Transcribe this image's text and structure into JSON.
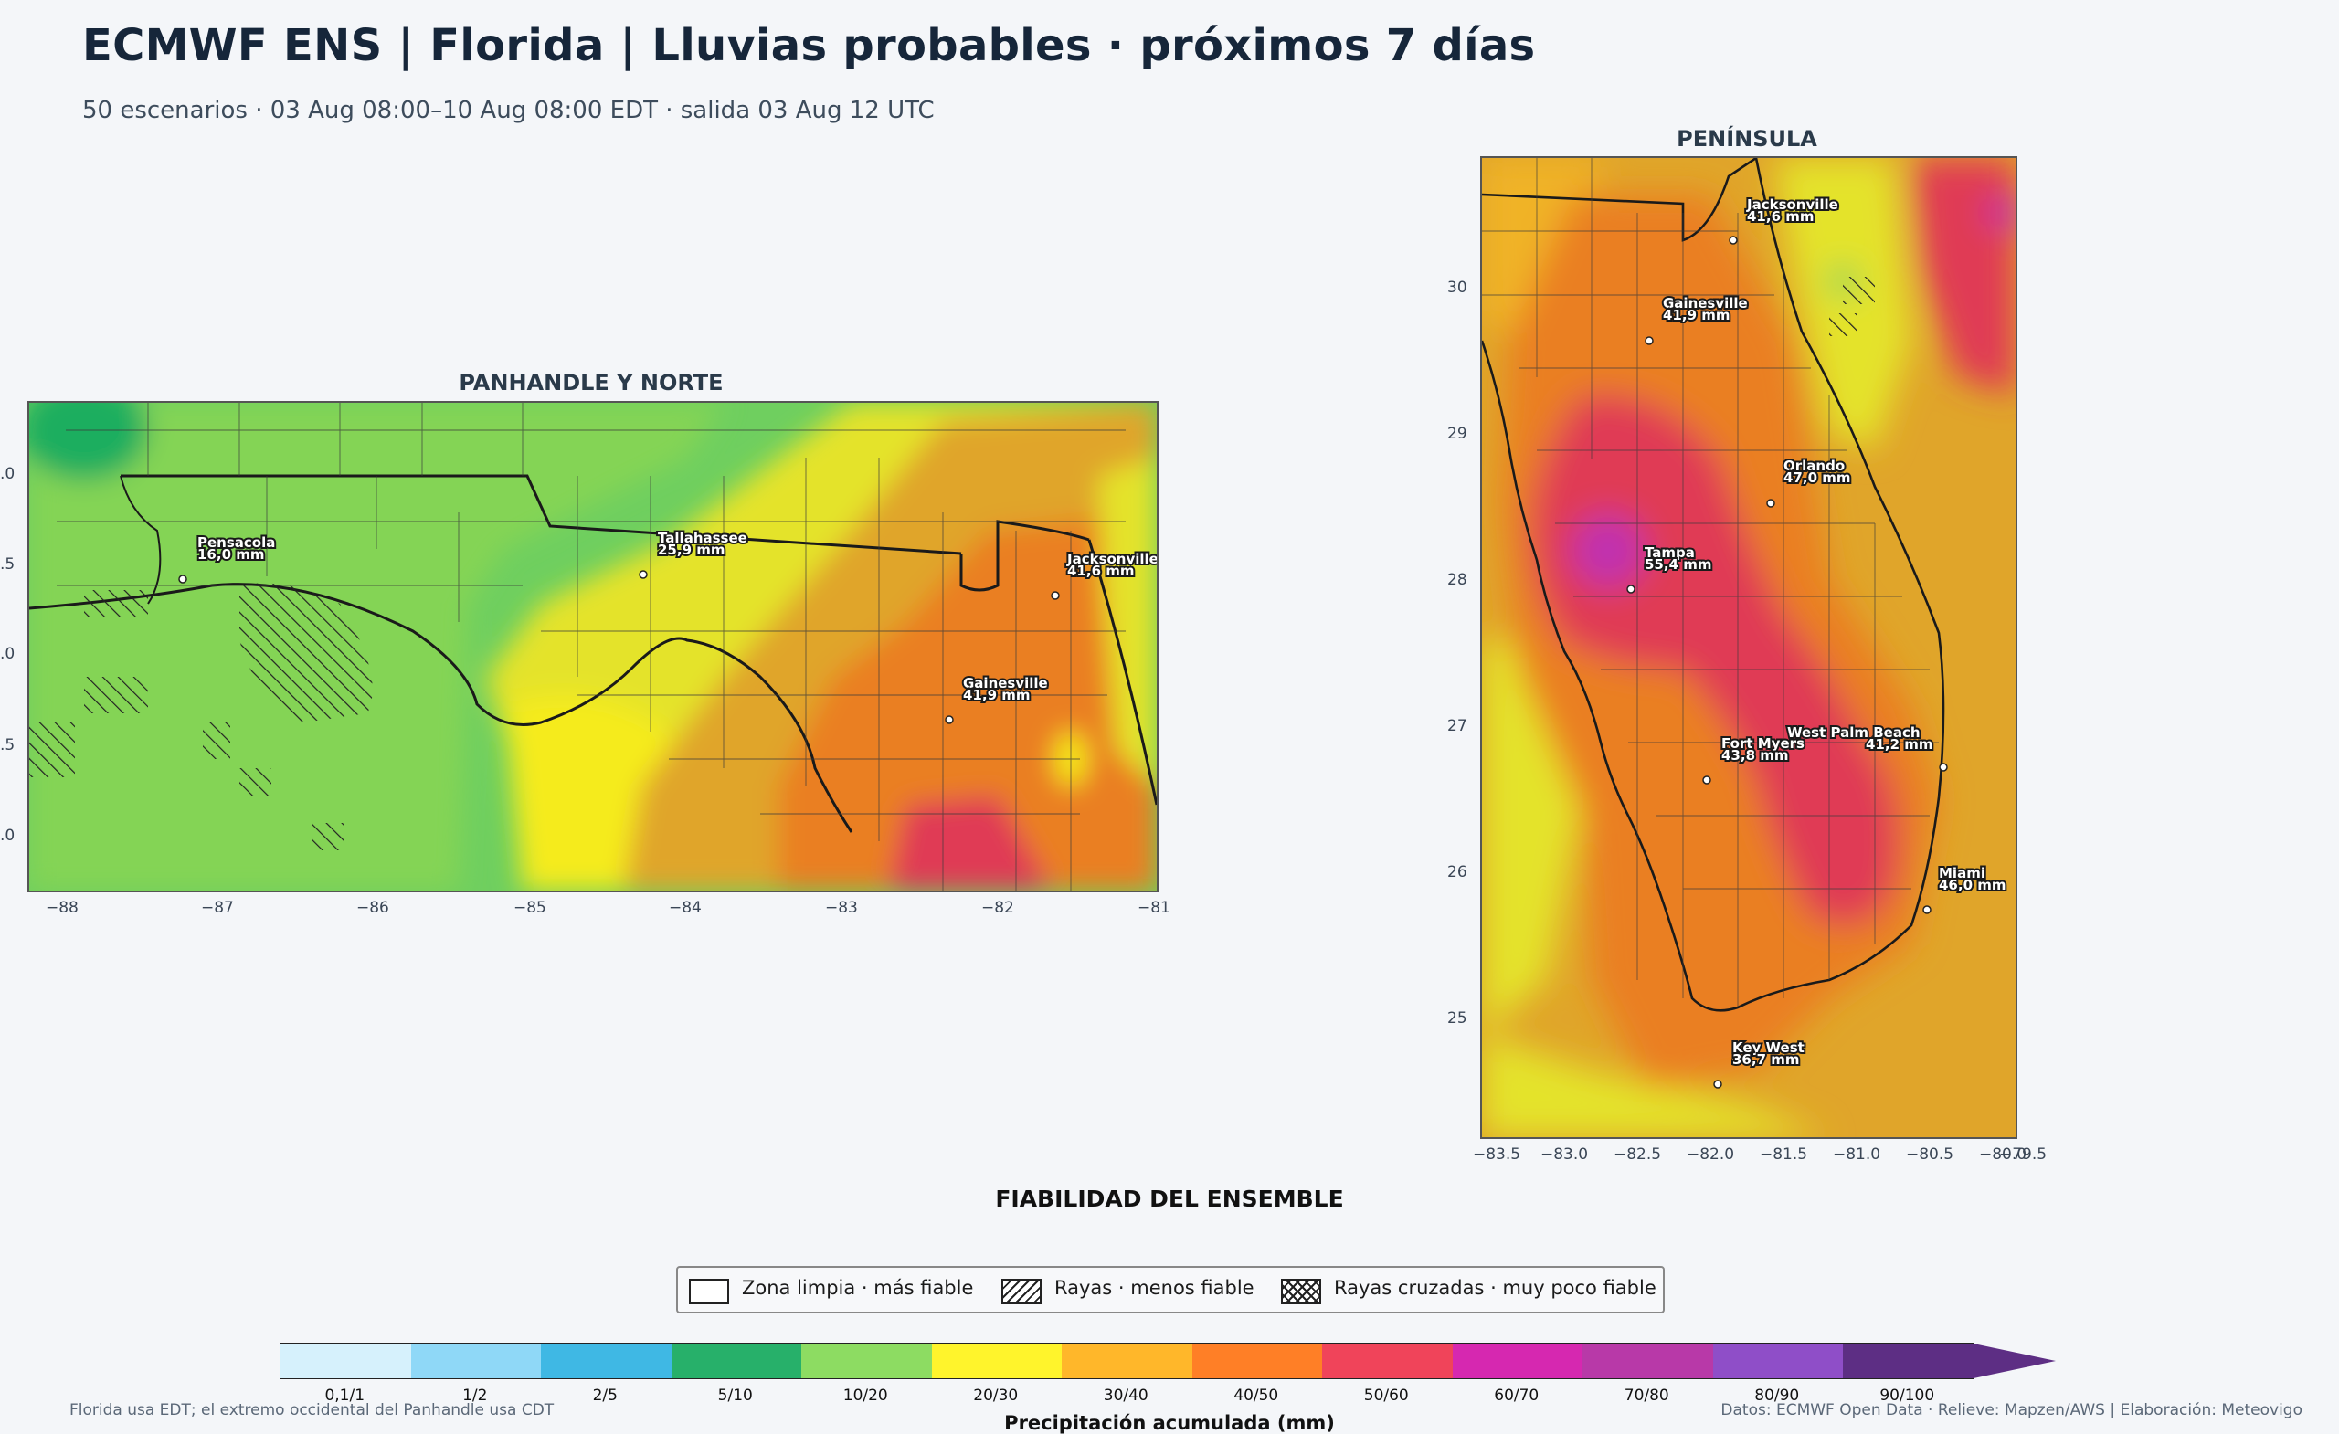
{
  "header": {
    "title": "ECMWF ENS | Florida | Lluvias probables · próximos 7 días",
    "subtitle": "50 escenarios · 03 Aug 08:00–10 Aug 08:00 EDT · salida 03 Aug 12 UTC"
  },
  "panhandle": {
    "title": "PANHANDLE Y NORTE",
    "xticks": [
      "−88",
      "−87",
      "−86",
      "−85",
      "−84",
      "−83",
      "−82",
      "−81"
    ],
    "yticks": [
      ".0",
      ".5",
      ".0",
      ".5",
      ".0"
    ],
    "cities": [
      {
        "name": "Pensacola",
        "value": "16,0 mm"
      },
      {
        "name": "Tallahassee",
        "value": "25,9 mm"
      },
      {
        "name": "Jacksonville",
        "value": "41,6 mm"
      },
      {
        "name": "Gainesville",
        "value": "41,9 mm"
      }
    ]
  },
  "peninsula": {
    "title": "PENÍNSULA",
    "xticks": [
      "−83.5",
      "−83.0",
      "−82.5",
      "−82.0",
      "−81.5",
      "−81.0",
      "−80.5",
      "−80.0",
      "−79.5"
    ],
    "yticks": [
      "30",
      "29",
      "28",
      "27",
      "26",
      "25"
    ],
    "cities": [
      {
        "name": "Jacksonville",
        "value": "41,6 mm"
      },
      {
        "name": "Gainesville",
        "value": "41,9 mm"
      },
      {
        "name": "Orlando",
        "value": "47,0 mm"
      },
      {
        "name": "Tampa",
        "value": "55,4 mm"
      },
      {
        "name": "Fort Myers",
        "value": "43,8 mm"
      },
      {
        "name": "West Palm Beach",
        "value": "41,2 mm"
      },
      {
        "name": "Miami",
        "value": "46,0 mm"
      },
      {
        "name": "Key West",
        "value": "36,7 mm"
      }
    ]
  },
  "reliability": {
    "title": "FIABILIDAD DEL ENSEMBLE",
    "items": [
      {
        "label": "Zona limpia · más fiable",
        "pattern": "none"
      },
      {
        "label": "Rayas · menos fiable",
        "pattern": "hatch"
      },
      {
        "label": "Rayas cruzadas · muy poco fiable",
        "pattern": "crosshatch"
      }
    ]
  },
  "colorbar": {
    "title": "Precipitación acumulada (mm)",
    "labels": [
      "0,1/1",
      "1/2",
      "2/5",
      "5/10",
      "10/20",
      "20/30",
      "30/40",
      "40/50",
      "50/60",
      "60/70",
      "70/80",
      "80/90",
      "90/100"
    ],
    "colors": [
      "#d6f1fc",
      "#8fd8f7",
      "#3fb8e4",
      "#27b06a",
      "#8ddc62",
      "#fff42c",
      "#ffb72a",
      "#ff7f26",
      "#f0445a",
      "#d628b0",
      "#b839a8",
      "#8f4ec8",
      "#5d2e84"
    ]
  },
  "footer": {
    "left": "Florida usa EDT; el extremo occidental del Panhandle usa CDT",
    "right": "Datos: ECMWF Open Data · Relieve: Mapzen/AWS | Elaboración: Meteovigo"
  }
}
